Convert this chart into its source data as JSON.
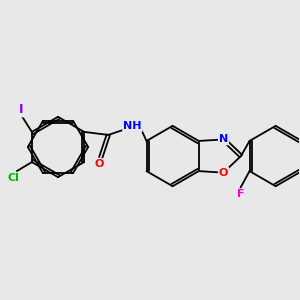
{
  "background_color": "#e8e8e8",
  "bond_color": "#000000",
  "atom_colors": {
    "I": "#8800ff",
    "Cl": "#00bb00",
    "O": "#ff0000",
    "N": "#0000ff",
    "F": "#ff00cc",
    "C": "#000000",
    "H": "#000000"
  },
  "figsize": [
    3.0,
    3.0
  ],
  "dpi": 100
}
